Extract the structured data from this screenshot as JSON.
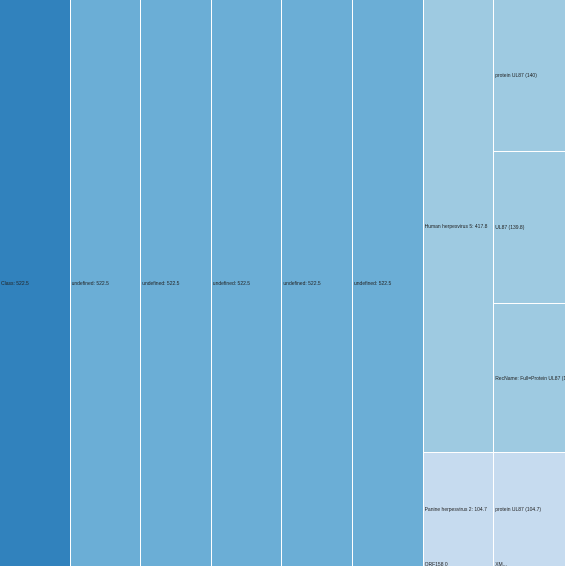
{
  "chart_data": {
    "type": "icicle",
    "colors": {
      "root": "#3182bd",
      "level1": "#6baed6",
      "level6": "#9ecae1",
      "level6_alt": "#c6dbef",
      "level7": "#9ecae1",
      "level7_alt": "#c6dbef"
    },
    "root": {
      "label": "Class: 522.5",
      "value": 522.5
    },
    "chain": [
      {
        "label": "undefined: 522.5",
        "value": 522.5
      },
      {
        "label": "undefined: 522.5",
        "value": 522.5
      },
      {
        "label": "undefined: 522.5",
        "value": 522.5
      },
      {
        "label": "undefined: 522.5",
        "value": 522.5
      },
      {
        "label": "undefined: 522.5",
        "value": 522.5
      }
    ],
    "hosts": [
      {
        "label": "Human herpesvirus 5: 417.8",
        "value": 417.8,
        "children": [
          {
            "label": "protein UL87 (140)",
            "value": 140
          },
          {
            "label": "UL87 (139.8)",
            "value": 139.8
          },
          {
            "label": "RecName: Full=Protein UL87 (138)",
            "value": 138
          }
        ]
      },
      {
        "label": "Panine herpesvirus 2: 104.7",
        "value": 104.7,
        "children": [
          {
            "label": "protein UL87 (104.7)",
            "value": 104.7
          }
        ]
      }
    ],
    "partial_labels": [
      "ORF158 0",
      "XM..."
    ]
  }
}
